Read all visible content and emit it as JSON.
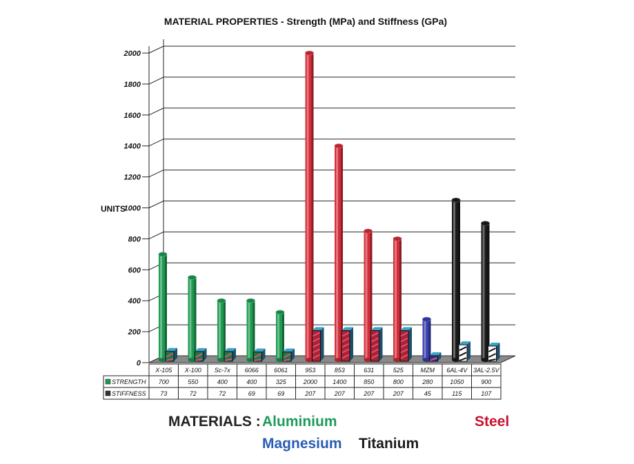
{
  "chart_data": {
    "type": "bar",
    "title": "MATERIAL PROPERTIES - Strength (MPa) and Stiffness (GPa)",
    "ylabel": "UNITS",
    "ylim": [
      0,
      2000
    ],
    "yticks": [
      0,
      200,
      400,
      600,
      800,
      1000,
      1200,
      1400,
      1600,
      1800,
      2000
    ],
    "grid": true,
    "categories": [
      "X-105",
      "X-100",
      "Sc-7x",
      "6066",
      "6061",
      "953",
      "853",
      "631",
      "525",
      "MZM",
      "6AL-4V",
      "3AL-2.5V"
    ],
    "groups": [
      "aluminium",
      "aluminium",
      "aluminium",
      "aluminium",
      "aluminium",
      "steel",
      "steel",
      "steel",
      "steel",
      "magnesium",
      "titanium",
      "titanium"
    ],
    "series": [
      {
        "name": "STRENGTH",
        "values": [
          700,
          550,
          400,
          400,
          325,
          2000,
          1400,
          850,
          800,
          280,
          1050,
          900
        ]
      },
      {
        "name": "STIFFNESS",
        "values": [
          73,
          72,
          72,
          69,
          69,
          207,
          207,
          207,
          207,
          45,
          115,
          107
        ]
      }
    ],
    "group_colors": {
      "aluminium": "#1f9a52",
      "steel": "#d42d3a",
      "magnesium": "#3a3fae",
      "titanium": "#1a1a1a"
    },
    "floor_color": "#8a8a8a"
  },
  "legend": {
    "prefix": "MATERIALS :",
    "aluminium": "Aluminium",
    "steel": "Steel",
    "magnesium": "Magnesium",
    "titanium": "Titanium",
    "aluminium_color": "#1e9a5a",
    "steel_color": "#c8102e",
    "magnesium_color": "#2a5bb5",
    "titanium_color": "#1a1a1a"
  }
}
